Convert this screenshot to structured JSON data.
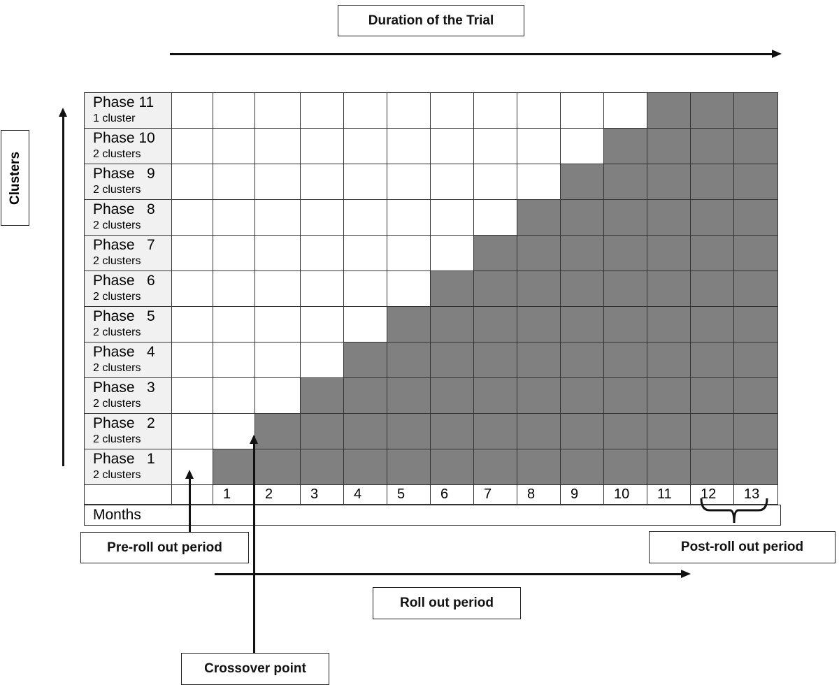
{
  "title": "Duration of the Trial",
  "y_axis_label": "Clusters",
  "x_axis_label": "Months",
  "phases": [
    {
      "name": "Phase 11",
      "count": "1 cluster",
      "intervention_start": 11
    },
    {
      "name": "Phase 10",
      "count": "2 clusters",
      "intervention_start": 10
    },
    {
      "name": "Phase   9",
      "count": "2 clusters",
      "intervention_start": 9
    },
    {
      "name": "Phase   8",
      "count": "2 clusters",
      "intervention_start": 8
    },
    {
      "name": "Phase   7",
      "count": "2 clusters",
      "intervention_start": 7
    },
    {
      "name": "Phase   6",
      "count": "2 clusters",
      "intervention_start": 6
    },
    {
      "name": "Phase   5",
      "count": "2 clusters",
      "intervention_start": 5
    },
    {
      "name": "Phase   4",
      "count": "2 clusters",
      "intervention_start": 4
    },
    {
      "name": "Phase   3",
      "count": "2 clusters",
      "intervention_start": 3
    },
    {
      "name": "Phase   2",
      "count": "2 clusters",
      "intervention_start": 2
    },
    {
      "name": "Phase   1",
      "count": "2 clusters",
      "intervention_start": 1
    }
  ],
  "months": [
    "",
    "1",
    "2",
    "3",
    "4",
    "5",
    "6",
    "7",
    "8",
    "9",
    "10",
    "11",
    "12",
    "13"
  ],
  "annotations": {
    "pre_roll_out": "Pre-roll out period",
    "post_roll_out": "Post-roll out period",
    "roll_out": "Roll out period",
    "crossover": "Crossover point"
  },
  "colors": {
    "intervention": "#808080",
    "control": "#ffffff",
    "label_bg": "#f1f1f1"
  }
}
